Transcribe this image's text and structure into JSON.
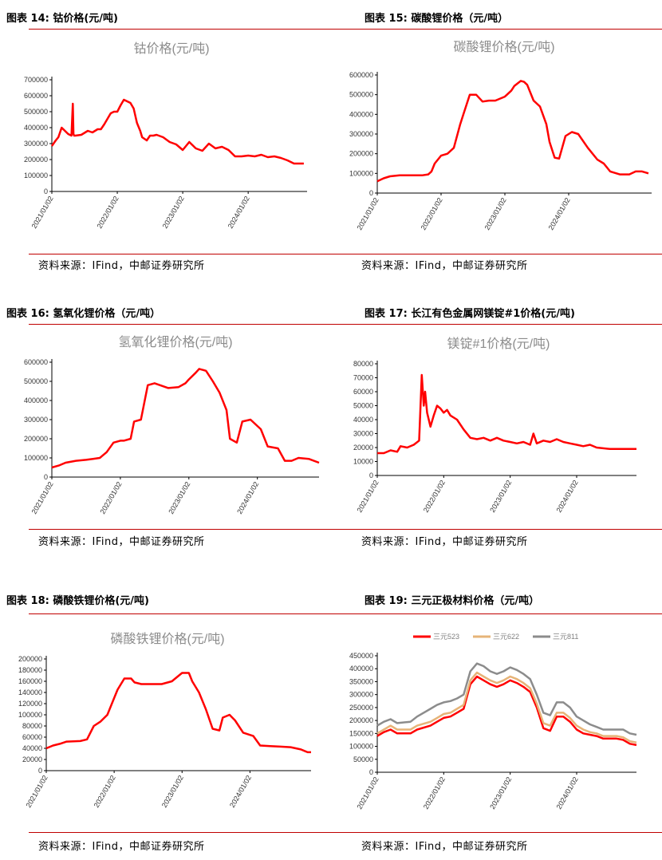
{
  "source_text": "资料来源：IFind，中邮证券研究所",
  "panels": [
    {
      "fig": "图表 14:",
      "name": "钴价格(元/吨)",
      "chart_data": {
        "type": "line",
        "title": "钴价格(元/吨)",
        "x_ticks": [
          "2021/01/02",
          "2022/01/02",
          "2023/01/02",
          "2024/01/02"
        ],
        "y_ticks": [
          0,
          100000,
          200000,
          300000,
          400000,
          500000,
          600000,
          700000
        ],
        "ylim": [
          0,
          700000
        ],
        "xlim": [
          0,
          3.9
        ],
        "grid": false,
        "series": [
          {
            "color": "#ff0000",
            "x": [
              0,
              0.06,
              0.1,
              0.15,
              0.2,
              0.25,
              0.3,
              0.32,
              0.33,
              0.34,
              0.36,
              0.45,
              0.55,
              0.62,
              0.7,
              0.75,
              0.8,
              0.9,
              0.95,
              1.0,
              1.05,
              1.1,
              1.15,
              1.2,
              1.25,
              1.3,
              1.35,
              1.38,
              1.45,
              1.5,
              1.55,
              1.6,
              1.7,
              1.8,
              1.9,
              2.0,
              2.1,
              2.2,
              2.3,
              2.4,
              2.5,
              2.6,
              2.7,
              2.8,
              2.9,
              3.0,
              3.1,
              3.2,
              3.3,
              3.4,
              3.5,
              3.6,
              3.7,
              3.8,
              3.85
            ],
            "y": [
              285000,
              320000,
              340000,
              400000,
              380000,
              360000,
              350000,
              550000,
              360000,
              350000,
              350000,
              355000,
              380000,
              370000,
              390000,
              390000,
              420000,
              490000,
              500000,
              500000,
              540000,
              575000,
              565000,
              555000,
              520000,
              430000,
              380000,
              340000,
              320000,
              350000,
              350000,
              355000,
              340000,
              310000,
              295000,
              260000,
              310000,
              270000,
              255000,
              300000,
              270000,
              280000,
              260000,
              220000,
              220000,
              225000,
              220000,
              230000,
              215000,
              220000,
              210000,
              195000,
              175000,
              175000,
              175000
            ]
          }
        ]
      }
    },
    {
      "fig": "图表 15:",
      "name": "碳酸锂价格（元/吨）",
      "chart_data": {
        "type": "line",
        "title": "碳酸锂价格(元/吨)",
        "x_ticks": [
          "2021/01/02",
          "2022/01/02",
          "2023/01/02",
          "2024/01/02"
        ],
        "y_ticks": [
          0,
          100000,
          200000,
          300000,
          400000,
          500000,
          600000
        ],
        "ylim": [
          0,
          600000
        ],
        "xlim": [
          0,
          4.3
        ],
        "grid": false,
        "series": [
          {
            "color": "#ff0000",
            "x": [
              0,
              0.1,
              0.2,
              0.35,
              0.5,
              0.6,
              0.7,
              0.8,
              0.85,
              0.9,
              1.0,
              1.1,
              1.2,
              1.3,
              1.35,
              1.45,
              1.55,
              1.65,
              1.75,
              1.85,
              2.0,
              2.1,
              2.15,
              2.25,
              2.3,
              2.35,
              2.45,
              2.55,
              2.65,
              2.7,
              2.78,
              2.85,
              2.95,
              3.05,
              3.15,
              3.3,
              3.45,
              3.55,
              3.65,
              3.8,
              3.95,
              4.05,
              4.15,
              4.25
            ],
            "y": [
              60000,
              75000,
              85000,
              90000,
              90000,
              90000,
              90000,
              95000,
              110000,
              150000,
              190000,
              200000,
              230000,
              350000,
              400000,
              500000,
              500000,
              465000,
              470000,
              470000,
              490000,
              520000,
              545000,
              570000,
              565000,
              550000,
              470000,
              440000,
              350000,
              260000,
              180000,
              175000,
              290000,
              310000,
              300000,
              230000,
              170000,
              150000,
              110000,
              95000,
              95000,
              110000,
              110000,
              100000
            ]
          }
        ]
      }
    },
    {
      "fig": "图表 16:",
      "name": "氢氧化锂价格（元/吨）",
      "chart_data": {
        "type": "line",
        "title": "氢氧化锂价格(元/吨)",
        "x_ticks": [
          "2021/01/02",
          "2022/01/02",
          "2023/01/02",
          "2024/01/02"
        ],
        "y_ticks": [
          0,
          100000,
          200000,
          300000,
          400000,
          500000,
          600000
        ],
        "ylim": [
          0,
          600000
        ],
        "xlim": [
          0,
          3.9
        ],
        "grid": false,
        "series": [
          {
            "color": "#ff0000",
            "x": [
              0,
              0.1,
              0.2,
              0.35,
              0.5,
              0.6,
              0.7,
              0.8,
              0.9,
              1.0,
              1.05,
              1.15,
              1.2,
              1.3,
              1.4,
              1.5,
              1.7,
              1.85,
              1.95,
              2.0,
              2.1,
              2.15,
              2.25,
              2.35,
              2.45,
              2.55,
              2.6,
              2.7,
              2.78,
              2.9,
              3.05,
              3.15,
              3.3,
              3.4,
              3.5,
              3.6,
              3.75,
              3.9
            ],
            "y": [
              50000,
              60000,
              75000,
              85000,
              90000,
              95000,
              100000,
              130000,
              180000,
              190000,
              190000,
              200000,
              290000,
              300000,
              480000,
              490000,
              465000,
              470000,
              490000,
              510000,
              545000,
              565000,
              555000,
              500000,
              440000,
              350000,
              200000,
              180000,
              290000,
              300000,
              250000,
              160000,
              150000,
              85000,
              85000,
              100000,
              95000,
              75000
            ]
          }
        ]
      }
    },
    {
      "fig": "图表 17:",
      "name": "长江有色金属网镁锭#1价格(元/吨)",
      "chart_data": {
        "type": "line",
        "title": "镁锭#1价格(元/吨)",
        "x_ticks": [
          "2021/01/02",
          "2022/01/02",
          "2023/01/02",
          "2024/01/02"
        ],
        "y_ticks": [
          0,
          10000,
          20000,
          30000,
          40000,
          50000,
          60000,
          70000,
          80000
        ],
        "ylim": [
          0,
          80000
        ],
        "xlim": [
          0,
          3.9
        ],
        "grid": false,
        "series": [
          {
            "color": "#ff0000",
            "x": [
              0,
              0.1,
              0.2,
              0.3,
              0.35,
              0.45,
              0.55,
              0.63,
              0.67,
              0.7,
              0.72,
              0.75,
              0.8,
              0.85,
              0.9,
              0.95,
              1.0,
              1.05,
              1.1,
              1.2,
              1.3,
              1.4,
              1.5,
              1.6,
              1.7,
              1.8,
              1.9,
              2.0,
              2.1,
              2.2,
              2.3,
              2.35,
              2.4,
              2.5,
              2.6,
              2.7,
              2.8,
              2.9,
              3.0,
              3.1,
              3.2,
              3.3,
              3.5,
              3.7,
              3.9
            ],
            "y": [
              16000,
              16000,
              18000,
              17000,
              21000,
              20000,
              22000,
              25000,
              72000,
              50000,
              60000,
              45000,
              35000,
              43000,
              50000,
              48000,
              45000,
              47000,
              43000,
              40000,
              33000,
              27000,
              26000,
              27000,
              25000,
              27000,
              25000,
              24000,
              23000,
              24000,
              22000,
              30000,
              23000,
              25000,
              24000,
              26000,
              24000,
              23000,
              22000,
              21000,
              22000,
              20000,
              19000,
              19000,
              19000
            ]
          }
        ]
      }
    },
    {
      "fig": "图表 18:",
      "name": "磷酸铁锂价格(元/吨)",
      "chart_data": {
        "type": "line",
        "title": "磷酸铁锂价格(元/吨)",
        "x_ticks": [
          "2021/01/02",
          "2022/01/02",
          "2023/01/02",
          "2024/01/02"
        ],
        "y_ticks": [
          0,
          20000,
          40000,
          60000,
          80000,
          100000,
          120000,
          140000,
          160000,
          180000,
          200000
        ],
        "ylim": [
          0,
          200000
        ],
        "xlim": [
          0,
          3.9
        ],
        "grid": false,
        "series": [
          {
            "color": "#ff0000",
            "x": [
              0,
              0.1,
              0.2,
              0.3,
              0.5,
              0.6,
              0.7,
              0.8,
              0.9,
              1.0,
              1.05,
              1.15,
              1.25,
              1.3,
              1.4,
              1.5,
              1.7,
              1.85,
              1.95,
              2.0,
              2.1,
              2.15,
              2.25,
              2.35,
              2.45,
              2.55,
              2.6,
              2.7,
              2.78,
              2.9,
              3.05,
              3.15,
              3.3,
              3.45,
              3.6,
              3.75,
              3.85,
              3.9
            ],
            "y": [
              40000,
              45000,
              48000,
              52000,
              53000,
              56000,
              80000,
              88000,
              100000,
              130000,
              145000,
              165000,
              165000,
              158000,
              155000,
              155000,
              155000,
              160000,
              170000,
              175000,
              175000,
              160000,
              140000,
              110000,
              75000,
              72000,
              95000,
              100000,
              90000,
              68000,
              62000,
              45000,
              44000,
              43000,
              42000,
              38000,
              33000,
              33000
            ]
          }
        ]
      }
    },
    {
      "fig": "图表 19:",
      "name": "三元正极材料价格（元/吨）",
      "chart_data": {
        "type": "line",
        "title": "",
        "x_ticks": [
          "2021/01/02",
          "2022/01/02",
          "2023/01/02",
          "2024/01/02"
        ],
        "y_ticks": [
          0,
          50000,
          100000,
          150000,
          200000,
          250000,
          300000,
          350000,
          400000,
          450000
        ],
        "ylim": [
          0,
          450000
        ],
        "xlim": [
          0,
          3.9
        ],
        "grid": false,
        "legend": "top",
        "series": [
          {
            "name": "三元523",
            "color": "#ff0000",
            "x": [
              0,
              0.1,
              0.2,
              0.3,
              0.5,
              0.6,
              0.8,
              0.9,
              1.0,
              1.1,
              1.2,
              1.3,
              1.4,
              1.5,
              1.6,
              1.7,
              1.8,
              1.9,
              2.0,
              2.1,
              2.2,
              2.3,
              2.4,
              2.5,
              2.6,
              2.7,
              2.8,
              2.9,
              3.0,
              3.1,
              3.2,
              3.3,
              3.4,
              3.6,
              3.7,
              3.8,
              3.9
            ],
            "y": [
              140000,
              155000,
              165000,
              150000,
              150000,
              165000,
              180000,
              195000,
              210000,
              215000,
              230000,
              245000,
              340000,
              370000,
              355000,
              340000,
              330000,
              340000,
              355000,
              345000,
              330000,
              310000,
              250000,
              170000,
              160000,
              215000,
              215000,
              195000,
              165000,
              150000,
              145000,
              140000,
              130000,
              130000,
              125000,
              110000,
              105000
            ]
          },
          {
            "name": "三元622",
            "color": "#e6b478",
            "x": [
              0,
              0.1,
              0.2,
              0.3,
              0.5,
              0.6,
              0.8,
              0.9,
              1.0,
              1.1,
              1.2,
              1.3,
              1.4,
              1.5,
              1.6,
              1.7,
              1.8,
              1.9,
              2.0,
              2.1,
              2.2,
              2.3,
              2.4,
              2.5,
              2.6,
              2.7,
              2.8,
              2.9,
              3.0,
              3.1,
              3.2,
              3.3,
              3.4,
              3.6,
              3.7,
              3.8,
              3.9
            ],
            "y": [
              150000,
              165000,
              180000,
              165000,
              165000,
              180000,
              195000,
              210000,
              225000,
              230000,
              245000,
              260000,
              355000,
              385000,
              370000,
              355000,
              345000,
              355000,
              370000,
              360000,
              345000,
              325000,
              265000,
              190000,
              180000,
              230000,
              230000,
              210000,
              180000,
              165000,
              155000,
              150000,
              140000,
              140000,
              135000,
              120000,
              115000
            ]
          },
          {
            "name": "三元811",
            "color": "#8c8c8c",
            "x": [
              0,
              0.1,
              0.2,
              0.3,
              0.5,
              0.6,
              0.8,
              0.9,
              1.0,
              1.1,
              1.2,
              1.3,
              1.4,
              1.5,
              1.6,
              1.7,
              1.8,
              1.9,
              2.0,
              2.1,
              2.2,
              2.3,
              2.4,
              2.5,
              2.6,
              2.7,
              2.8,
              2.9,
              3.0,
              3.1,
              3.2,
              3.3,
              3.4,
              3.6,
              3.7,
              3.8,
              3.9
            ],
            "y": [
              180000,
              195000,
              205000,
              190000,
              195000,
              215000,
              245000,
              260000,
              270000,
              275000,
              285000,
              300000,
              390000,
              420000,
              410000,
              390000,
              380000,
              390000,
              405000,
              395000,
              380000,
              360000,
              300000,
              230000,
              220000,
              270000,
              270000,
              250000,
              215000,
              200000,
              185000,
              175000,
              165000,
              165000,
              165000,
              150000,
              145000
            ]
          }
        ]
      }
    }
  ]
}
